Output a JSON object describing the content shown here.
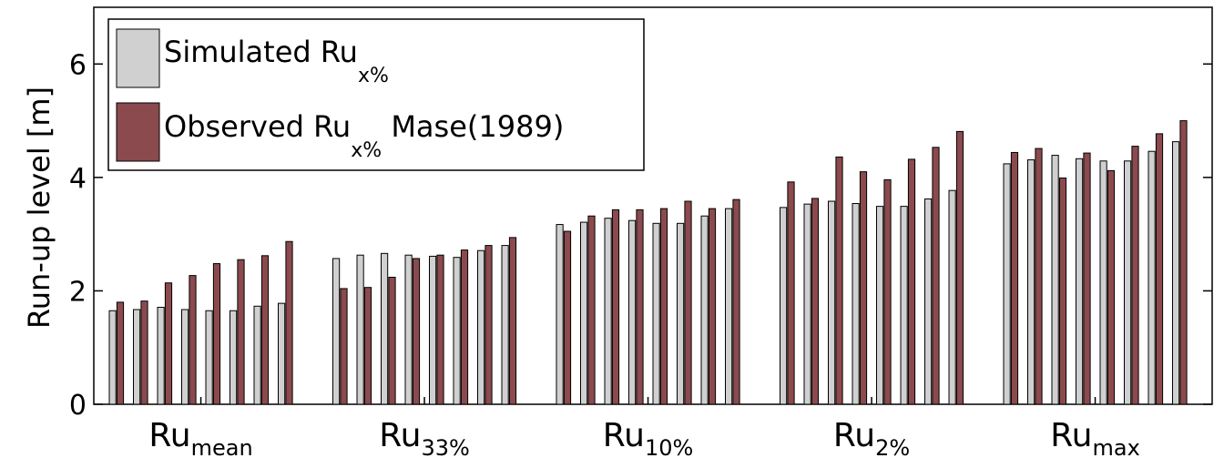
{
  "chart_data": {
    "type": "bar",
    "ylabel": "Run-up level [m]",
    "ylim": [
      0,
      7
    ],
    "yticks": [
      0,
      2,
      4,
      6
    ],
    "grid": false,
    "legend_position": "top-left",
    "categories": [
      {
        "base": "Ru",
        "sub": "mean"
      },
      {
        "base": "Ru",
        "sub": "33%"
      },
      {
        "base": "Ru",
        "sub": "10%"
      },
      {
        "base": "Ru",
        "sub": "2%"
      },
      {
        "base": "Ru",
        "sub": "max"
      }
    ],
    "pairs_per_category": 8,
    "series": [
      {
        "name": "Simulated Ru",
        "name_sub": "x%",
        "name_suffix": "",
        "color": "#d0d0d0",
        "values": [
          [
            1.65,
            1.67,
            1.71,
            1.67,
            1.65,
            1.65,
            1.73,
            1.78
          ],
          [
            2.57,
            2.63,
            2.66,
            2.63,
            2.61,
            2.59,
            2.71,
            2.8
          ],
          [
            3.17,
            3.21,
            3.28,
            3.24,
            3.19,
            3.19,
            3.32,
            3.45
          ],
          [
            3.47,
            3.53,
            3.58,
            3.54,
            3.49,
            3.49,
            3.62,
            3.77
          ],
          [
            4.24,
            4.31,
            4.39,
            4.33,
            4.29,
            4.29,
            4.46,
            4.63
          ]
        ]
      },
      {
        "name": "Observed Ru",
        "name_sub": "x%",
        "name_suffix": " Mase(1989)",
        "color": "#8b4a4e",
        "values": [
          [
            1.8,
            1.82,
            2.14,
            2.27,
            2.48,
            2.55,
            2.62,
            2.87
          ],
          [
            2.04,
            2.06,
            2.24,
            2.57,
            2.63,
            2.72,
            2.8,
            2.94
          ],
          [
            3.05,
            3.32,
            3.43,
            3.43,
            3.45,
            3.58,
            3.45,
            3.61
          ],
          [
            3.92,
            3.63,
            4.36,
            4.1,
            3.96,
            4.32,
            4.53,
            4.81
          ],
          [
            4.44,
            4.51,
            3.99,
            4.43,
            4.12,
            4.55,
            4.77,
            5.0
          ]
        ]
      }
    ]
  }
}
